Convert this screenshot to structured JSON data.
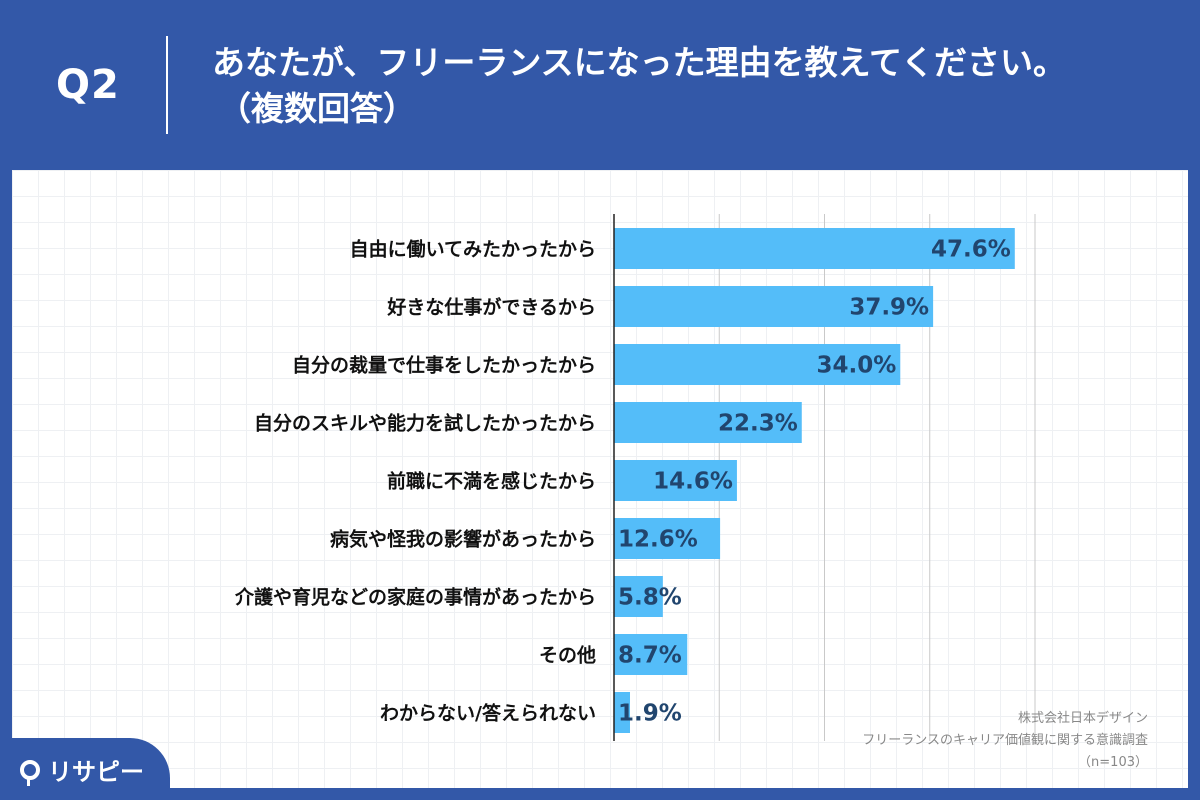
{
  "header": {
    "question_id": "Q2",
    "title_line1": "あなたが、フリーランスになった理由を教えてください。",
    "title_line2": "（複数回答）"
  },
  "colors": {
    "background": "#3358A8",
    "bar": "#54BDF9",
    "value_label": "#21456E",
    "panel": "#FFFFFF"
  },
  "chart_data": {
    "type": "bar",
    "orientation": "horizontal",
    "categories": [
      "自由に働いてみたかったから",
      "好きな仕事ができるから",
      "自分の裁量で仕事をしたかったから",
      "自分のスキルや能力を試したかったから",
      "前職に不満を感じたから",
      "病気や怪我の影響があったから",
      "介護や育児などの家庭の事情があったから",
      "その他",
      "わからない/答えられない"
    ],
    "values": [
      47.6,
      37.9,
      34.0,
      22.3,
      14.6,
      12.6,
      5.8,
      8.7,
      1.9
    ],
    "value_labels": [
      "47.6%",
      "37.9%",
      "34.0%",
      "22.3%",
      "14.6%",
      "12.6%",
      "5.8%",
      "8.7%",
      "1.9%"
    ],
    "unit": "%",
    "xlim": [
      0,
      50
    ],
    "gridline_step": 12.5,
    "grid": true
  },
  "source": {
    "line1": "株式会社日本デザイン",
    "line2": "フリーランスのキャリア価値観に関する意識調査",
    "line3": "（n=103）"
  },
  "logo": {
    "text": "リサピー"
  }
}
